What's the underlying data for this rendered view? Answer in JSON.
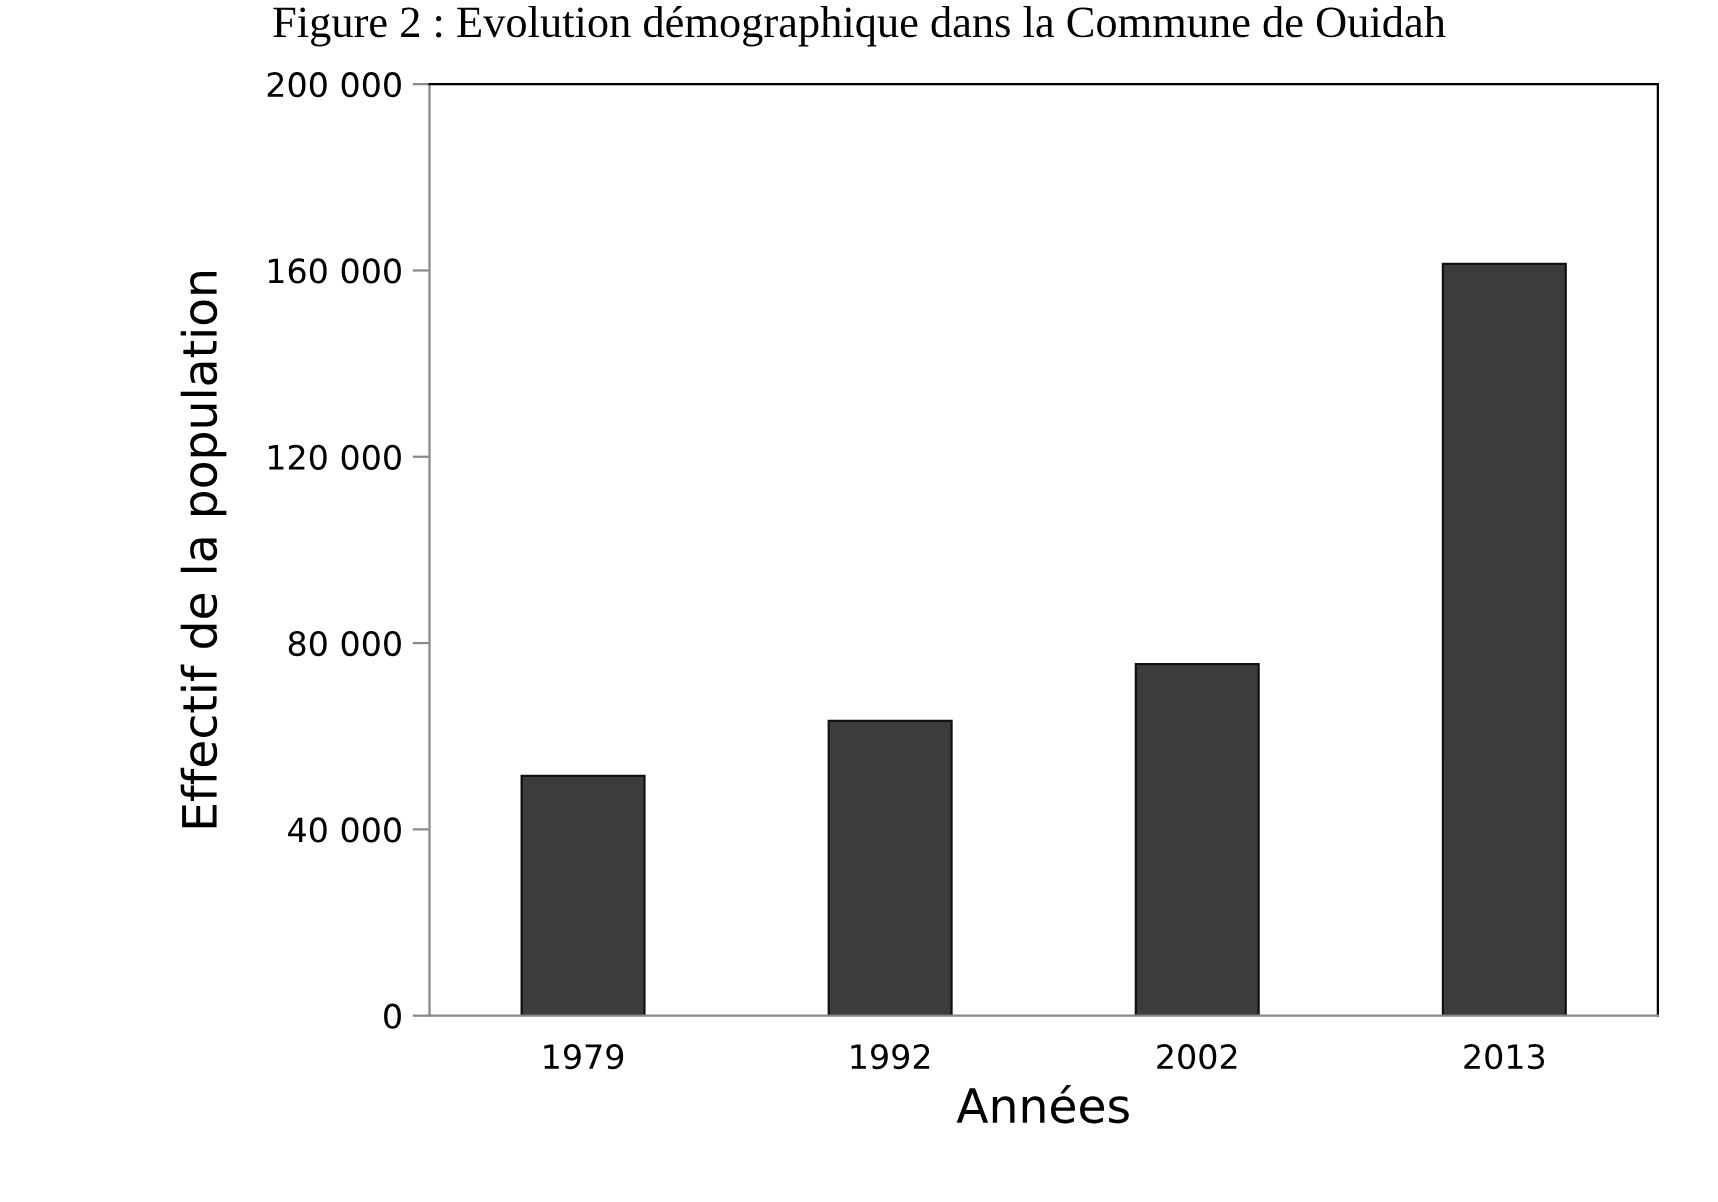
{
  "chart_data": {
    "type": "bar",
    "title": "Figure 2 : Evolution démographique dans la Commune de Ouidah",
    "xlabel": "Années",
    "ylabel": "Effectif de la population",
    "categories": [
      "1979",
      "1992",
      "2002",
      "2013"
    ],
    "values": [
      51500,
      63300,
      75500,
      161400
    ],
    "color": "#3c3c3c",
    "ylim": [
      0,
      200000
    ],
    "yticks": [
      0,
      {
        "value": 40000,
        "label": "40 000"
      },
      {
        "value": 80000,
        "label": "80 000"
      },
      {
        "value": 120000,
        "label": "120 000"
      },
      {
        "value": 160000,
        "label": "160 000"
      },
      {
        "value": 200000,
        "label": "200 000"
      }
    ],
    "grid": false,
    "legend": false
  }
}
